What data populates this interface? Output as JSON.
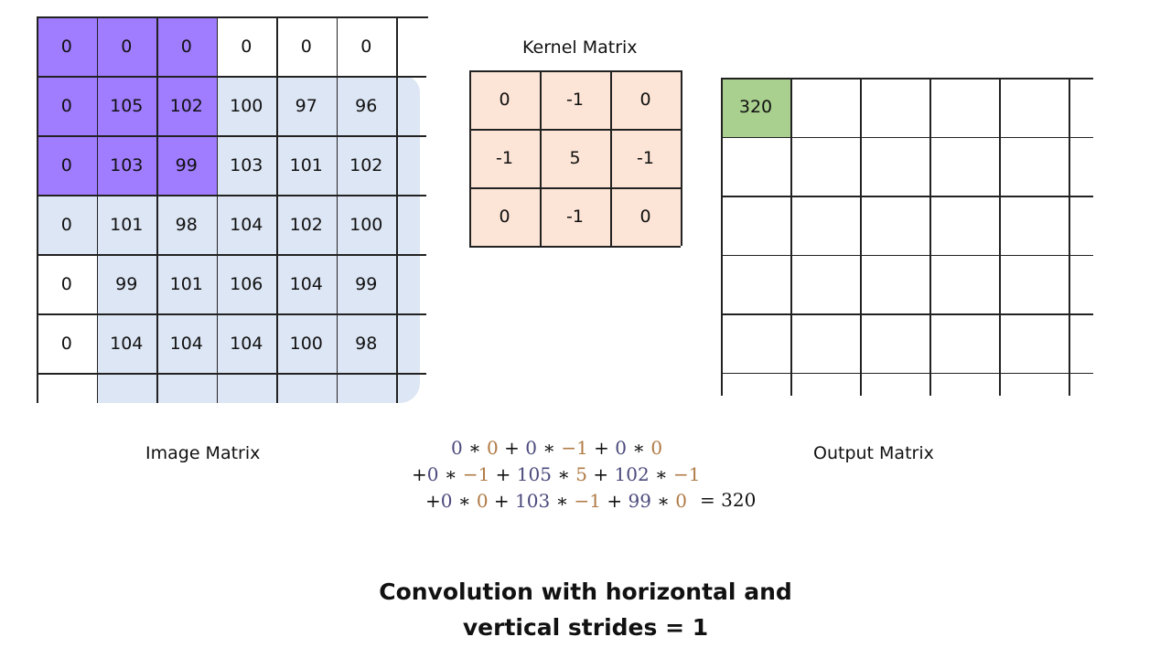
{
  "image_matrix": {
    "label": "Image Matrix",
    "rows": [
      [
        "0",
        "0",
        "0",
        "0",
        "0",
        "0"
      ],
      [
        "0",
        "105",
        "102",
        "100",
        "97",
        "96"
      ],
      [
        "0",
        "103",
        "99",
        "103",
        "101",
        "102"
      ],
      [
        "0",
        "101",
        "98",
        "104",
        "102",
        "100"
      ],
      [
        "0",
        "99",
        "101",
        "106",
        "104",
        "99"
      ],
      [
        "0",
        "104",
        "104",
        "104",
        "100",
        "98"
      ]
    ],
    "highlight_window": {
      "row_start": 0,
      "col_start": 0,
      "size": 3
    },
    "colors": {
      "highlight": "#a07cff",
      "image_region": "#dde6f4",
      "padding": "#ffffff"
    }
  },
  "kernel_matrix": {
    "label": "Kernel Matrix",
    "rows": [
      [
        "0",
        "-1",
        "0"
      ],
      [
        "-1",
        "5",
        "-1"
      ],
      [
        "0",
        "-1",
        "0"
      ]
    ],
    "color": "#fce4d6"
  },
  "output_matrix": {
    "label": "Output Matrix",
    "rows": [
      [
        "320",
        "",
        "",
        "",
        "",
        ""
      ],
      [
        "",
        "",
        "",
        "",
        "",
        ""
      ],
      [
        "",
        "",
        "",
        "",
        "",
        ""
      ],
      [
        "",
        "",
        "",
        "",
        "",
        ""
      ],
      [
        "",
        "",
        "",
        "",
        "",
        ""
      ]
    ],
    "filled_color": "#a9d08e"
  },
  "equation": {
    "lines": [
      [
        [
          "img",
          "0"
        ],
        [
          "op",
          " ∗ "
        ],
        [
          "ker",
          "0"
        ],
        [
          "op",
          " + "
        ],
        [
          "img",
          "0"
        ],
        [
          "op",
          " ∗ "
        ],
        [
          "ker",
          "−1"
        ],
        [
          "op",
          " + "
        ],
        [
          "img",
          "0"
        ],
        [
          "op",
          " ∗ "
        ],
        [
          "ker",
          "0"
        ]
      ],
      [
        [
          "op",
          "+"
        ],
        [
          "img",
          "0"
        ],
        [
          "op",
          " ∗ "
        ],
        [
          "ker",
          "−1"
        ],
        [
          "op",
          " + "
        ],
        [
          "img",
          "105"
        ],
        [
          "op",
          " ∗ "
        ],
        [
          "ker",
          "5"
        ],
        [
          "op",
          " + "
        ],
        [
          "img",
          "102"
        ],
        [
          "op",
          " ∗ "
        ],
        [
          "ker",
          "−1"
        ]
      ],
      [
        [
          "op",
          "+"
        ],
        [
          "img",
          "0"
        ],
        [
          "op",
          " ∗ "
        ],
        [
          "ker",
          "0"
        ],
        [
          "op",
          " + "
        ],
        [
          "img",
          "103"
        ],
        [
          "op",
          " ∗ "
        ],
        [
          "ker",
          "−1"
        ],
        [
          "op",
          " + "
        ],
        [
          "img",
          "99"
        ],
        [
          "op",
          " ∗ "
        ],
        [
          "ker",
          "0"
        ]
      ]
    ],
    "result": "= 320"
  },
  "caption": {
    "line1": "Convolution with horizontal and",
    "line2": "vertical strides = 1"
  }
}
